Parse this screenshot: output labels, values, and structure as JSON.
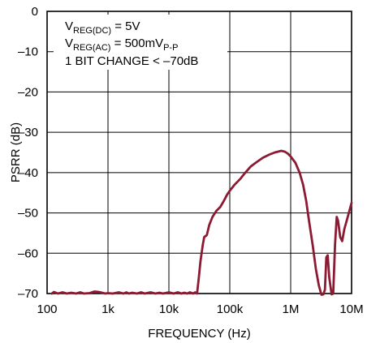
{
  "chart_data": {
    "type": "line",
    "xlabel": "FREQUENCY (Hz)",
    "ylabel": "PSRR (dB)",
    "xscale": "log",
    "xlim": [
      100,
      10000000
    ],
    "ylim": [
      -70,
      0
    ],
    "grid": true,
    "x_ticks": [
      {
        "value": 100,
        "label": "100"
      },
      {
        "value": 1000,
        "label": "1k"
      },
      {
        "value": 10000,
        "label": "10k"
      },
      {
        "value": 100000,
        "label": "100k"
      },
      {
        "value": 1000000,
        "label": "1M"
      },
      {
        "value": 10000000,
        "label": "10M"
      }
    ],
    "y_ticks": [
      {
        "value": 0,
        "label": "0"
      },
      {
        "value": -10,
        "label": "–10"
      },
      {
        "value": -20,
        "label": "–20"
      },
      {
        "value": -30,
        "label": "–30"
      },
      {
        "value": -40,
        "label": "–40"
      },
      {
        "value": -50,
        "label": "–50"
      },
      {
        "value": -60,
        "label": "–60"
      },
      {
        "value": -70,
        "label": "–70"
      }
    ],
    "annotations": {
      "line1": {
        "main": "V",
        "sub": "REG(DC)",
        "rest": " = 5V"
      },
      "line2": {
        "main": "V",
        "sub": "REG(AC)",
        "rest": " = 500mV",
        "sub2": "P-P"
      },
      "line3": "1 BIT CHANGE < –70dB"
    },
    "series": [
      {
        "color": "#8b1a32",
        "points": [
          [
            120,
            -70
          ],
          [
            130,
            -69.6
          ],
          [
            150,
            -70
          ],
          [
            180,
            -69.7
          ],
          [
            210,
            -70
          ],
          [
            250,
            -69.8
          ],
          [
            300,
            -70
          ],
          [
            350,
            -69.7
          ],
          [
            400,
            -70
          ],
          [
            500,
            -69.9
          ],
          [
            600,
            -69.5
          ],
          [
            700,
            -69.6
          ],
          [
            800,
            -69.8
          ],
          [
            900,
            -70
          ],
          [
            1000,
            -69.9
          ],
          [
            1200,
            -70
          ],
          [
            1500,
            -69.7
          ],
          [
            1800,
            -70
          ],
          [
            2000,
            -69.7
          ],
          [
            2200,
            -70
          ],
          [
            2500,
            -69.8
          ],
          [
            3000,
            -70
          ],
          [
            3500,
            -69.7
          ],
          [
            4000,
            -70
          ],
          [
            5000,
            -69.7
          ],
          [
            6000,
            -70
          ],
          [
            7000,
            -69.8
          ],
          [
            8000,
            -70
          ],
          [
            10000,
            -69.7
          ],
          [
            12000,
            -70
          ],
          [
            14000,
            -69.7
          ],
          [
            16000,
            -70
          ],
          [
            18000,
            -69.8
          ],
          [
            20000,
            -70
          ],
          [
            22000,
            -69.7
          ],
          [
            25000,
            -70
          ],
          [
            27000,
            -69.7
          ],
          [
            29000,
            -70
          ],
          [
            31000,
            -66
          ],
          [
            33000,
            -62
          ],
          [
            36000,
            -58
          ],
          [
            38000,
            -56
          ],
          [
            42000,
            -55.5
          ],
          [
            46000,
            -53
          ],
          [
            52000,
            -51
          ],
          [
            60000,
            -49.5
          ],
          [
            70000,
            -48.5
          ],
          [
            80000,
            -47
          ],
          [
            90000,
            -45.5
          ],
          [
            100000,
            -44.5
          ],
          [
            120000,
            -43
          ],
          [
            150000,
            -41.5
          ],
          [
            180000,
            -40
          ],
          [
            220000,
            -38.5
          ],
          [
            270000,
            -37.5
          ],
          [
            350000,
            -36.3
          ],
          [
            450000,
            -35.5
          ],
          [
            550000,
            -35
          ],
          [
            700000,
            -34.6
          ],
          [
            800000,
            -34.8
          ],
          [
            900000,
            -35.3
          ],
          [
            1000000,
            -36
          ],
          [
            1200000,
            -37.6
          ],
          [
            1400000,
            -40
          ],
          [
            1600000,
            -43
          ],
          [
            1800000,
            -47
          ],
          [
            2000000,
            -52
          ],
          [
            2300000,
            -58
          ],
          [
            2600000,
            -64
          ],
          [
            2900000,
            -68
          ],
          [
            3200000,
            -70.3
          ],
          [
            3450000,
            -70.2
          ],
          [
            3650000,
            -69
          ],
          [
            3850000,
            -61
          ],
          [
            4050000,
            -60.5
          ],
          [
            4300000,
            -66
          ],
          [
            4700000,
            -70.2
          ],
          [
            5000000,
            -70
          ],
          [
            5350000,
            -58
          ],
          [
            5700000,
            -51
          ],
          [
            6000000,
            -52
          ],
          [
            6500000,
            -56
          ],
          [
            7000000,
            -57
          ],
          [
            7600000,
            -54
          ],
          [
            8300000,
            -52
          ],
          [
            9000000,
            -50
          ],
          [
            10000000,
            -47.5
          ]
        ]
      }
    ]
  }
}
